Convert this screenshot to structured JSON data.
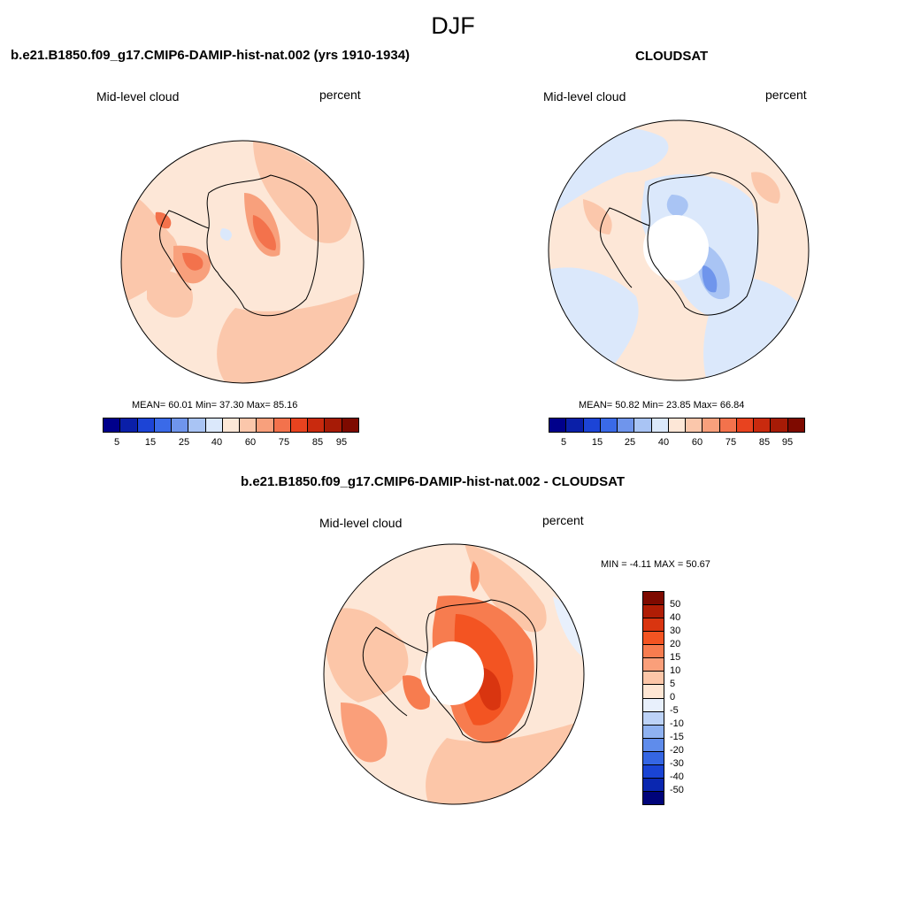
{
  "main_title": "DJF",
  "panels": [
    {
      "title": "b.e21.B1850.f09_g17.CMIP6-DAMIP-hist-nat.002 (yrs 1910-1934)",
      "left_label": "Mid-level cloud",
      "right_label": "percent",
      "stats": "MEAN=  60.01  Min=  37.30  Max=  85.16",
      "colorbar_ticks": [
        "5",
        "15",
        "25",
        "40",
        "60",
        "75",
        "85",
        "95"
      ]
    },
    {
      "title": "CLOUDSAT",
      "left_label": "Mid-level cloud",
      "right_label": "percent",
      "stats": "MEAN=  50.82  Min=  23.85  Max=  66.84",
      "colorbar_ticks": [
        "5",
        "15",
        "25",
        "40",
        "60",
        "75",
        "85",
        "95"
      ]
    },
    {
      "title": "b.e21.B1850.f09_g17.CMIP6-DAMIP-hist-nat.002 - CLOUDSAT",
      "left_label": "Mid-level cloud",
      "right_label": "percent",
      "stats": "MIN =  -4.11 MAX =  50.67",
      "colorbar_ticks": [
        "50",
        "40",
        "30",
        "20",
        "15",
        "10",
        "5",
        "0",
        "-5",
        "-10",
        "-15",
        "-20",
        "-30",
        "-40",
        "-50"
      ]
    }
  ],
  "colors": {
    "abs_scale": [
      "#00008b",
      "#0a1fa8",
      "#1c44d6",
      "#3a6ae8",
      "#6f95ec",
      "#a9c4f4",
      "#dbe8fb",
      "#fde7d7",
      "#fbc7ab",
      "#f8a07c",
      "#f3724c",
      "#e8431f",
      "#c92a0e",
      "#a61b06",
      "#7e0a00"
    ],
    "diff_scale": [
      "#7e0a00",
      "#b01d05",
      "#d93510",
      "#f35422",
      "#f77c4f",
      "#fa9f7a",
      "#fcc6a8",
      "#fee6d4",
      "#e8f0fc",
      "#bdd3f7",
      "#8fb2f1",
      "#5f8ceb",
      "#3566e3",
      "#1a44d4",
      "#0a27b0",
      "#00047a"
    ],
    "land_outline": "#000000"
  }
}
